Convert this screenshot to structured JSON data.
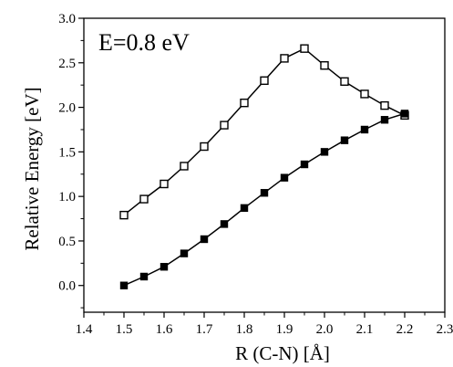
{
  "chart_data": {
    "type": "line",
    "annotation": "E=0.8 eV",
    "xlabel": "R (C-N) [Å]",
    "ylabel": "Relative Energy [eV]",
    "xlim": [
      1.4,
      2.3
    ],
    "ylim": [
      -0.3,
      3.0
    ],
    "xticks": [
      "1.4",
      "1.5",
      "1.6",
      "1.7",
      "1.8",
      "1.9",
      "2.0",
      "2.1",
      "2.2",
      "2.3"
    ],
    "yticks": [
      "0.0",
      "0.5",
      "1.0",
      "1.5",
      "2.0",
      "2.5",
      "3.0"
    ],
    "grid": false,
    "legend": "none",
    "series": [
      {
        "marker": "open-square",
        "color": "#000000",
        "x": [
          1.5,
          1.55,
          1.6,
          1.65,
          1.7,
          1.75,
          1.8,
          1.85,
          1.9,
          1.95,
          2.0,
          2.05,
          2.1,
          2.15,
          2.2
        ],
        "y": [
          0.79,
          0.97,
          1.14,
          1.34,
          1.56,
          1.8,
          2.05,
          2.3,
          2.55,
          2.66,
          2.47,
          2.29,
          2.15,
          2.02,
          1.91
        ]
      },
      {
        "marker": "filled-square",
        "color": "#000000",
        "x": [
          1.5,
          1.55,
          1.6,
          1.65,
          1.7,
          1.75,
          1.8,
          1.85,
          1.9,
          1.95,
          2.0,
          2.05,
          2.1,
          2.15,
          2.2
        ],
        "y": [
          0.0,
          0.1,
          0.21,
          0.36,
          0.52,
          0.69,
          0.87,
          1.04,
          1.21,
          1.36,
          1.5,
          1.63,
          1.75,
          1.86,
          1.93
        ]
      }
    ]
  }
}
